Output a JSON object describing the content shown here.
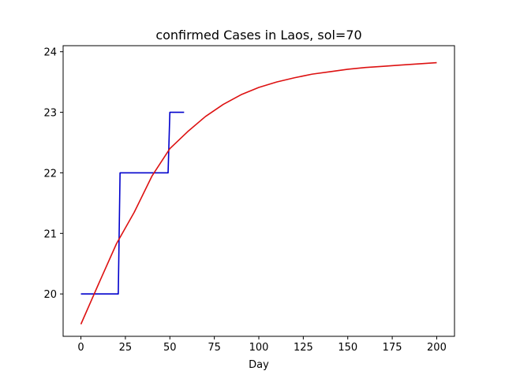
{
  "chart_data": {
    "type": "line",
    "title": "confirmed Cases in Laos, sol=70",
    "xlabel": "Day",
    "ylabel": "",
    "xlim": [
      -10,
      210
    ],
    "ylim": [
      19.3,
      24.1
    ],
    "xticks": [
      0,
      25,
      50,
      75,
      100,
      125,
      150,
      175,
      200
    ],
    "yticks": [
      20,
      21,
      22,
      23,
      24
    ],
    "grid": false,
    "legend": "none",
    "series": [
      {
        "color": "#0000cc",
        "x": [
          0,
          21,
          22,
          49,
          50,
          58
        ],
        "y": [
          20,
          20,
          22,
          22,
          23,
          23
        ]
      },
      {
        "color": "#dd1111",
        "x": [
          0,
          10,
          20,
          30,
          40,
          50,
          60,
          70,
          80,
          90,
          100,
          110,
          120,
          130,
          140,
          150,
          160,
          170,
          180,
          190,
          200
        ],
        "y": [
          19.5,
          20.17,
          20.83,
          21.35,
          21.95,
          22.4,
          22.68,
          22.93,
          23.13,
          23.29,
          23.41,
          23.5,
          23.57,
          23.63,
          23.67,
          23.71,
          23.74,
          23.76,
          23.78,
          23.8,
          23.82
        ]
      }
    ]
  }
}
